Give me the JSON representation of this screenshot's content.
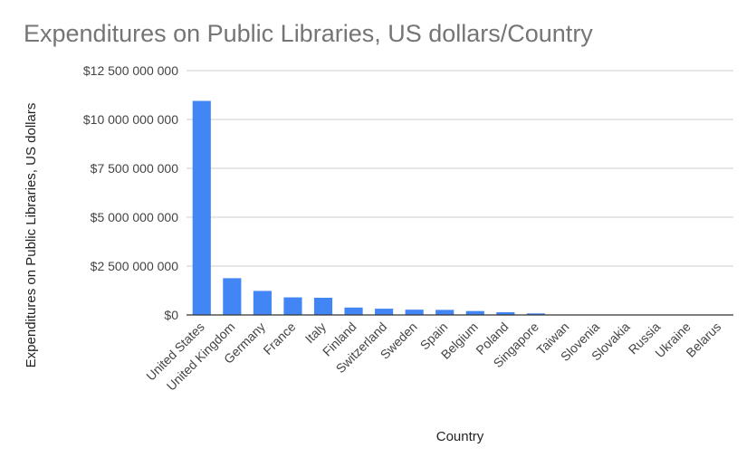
{
  "chart_data": {
    "type": "bar",
    "title": "Expenditures on Public Libraries, US dollars/Country",
    "xlabel": "Country",
    "ylabel": "Expenditures on Public Libraries, US dollars",
    "ylim": [
      0,
      12500000000
    ],
    "yticks": [
      {
        "value": 0,
        "label": "$0"
      },
      {
        "value": 2500000000,
        "label": "$2 500 000 000"
      },
      {
        "value": 5000000000,
        "label": "$5 000 000 000"
      },
      {
        "value": 7500000000,
        "label": "$7 500 000 000"
      },
      {
        "value": 10000000000,
        "label": "$10 000 000 000"
      },
      {
        "value": 12500000000,
        "label": "$12 500 000 000"
      }
    ],
    "categories": [
      "United States",
      "United Kingdom",
      "Germany",
      "France",
      "Italy",
      "Finland",
      "Switzerland",
      "Sweden",
      "Spain",
      "Belgium",
      "Poland",
      "Singapore",
      "Taiwan",
      "Slovenia",
      "Slovakia",
      "Russia",
      "Ukraine",
      "Belarus"
    ],
    "values": [
      10950000000,
      1880000000,
      1230000000,
      900000000,
      880000000,
      380000000,
      320000000,
      270000000,
      260000000,
      200000000,
      140000000,
      80000000,
      20000000,
      15000000,
      10000000,
      8000000,
      5000000,
      3000000
    ],
    "grid": true,
    "legend": "none",
    "bar_color": "#4285f4",
    "grid_color": "#cccccc",
    "axis_color": "#333333"
  }
}
